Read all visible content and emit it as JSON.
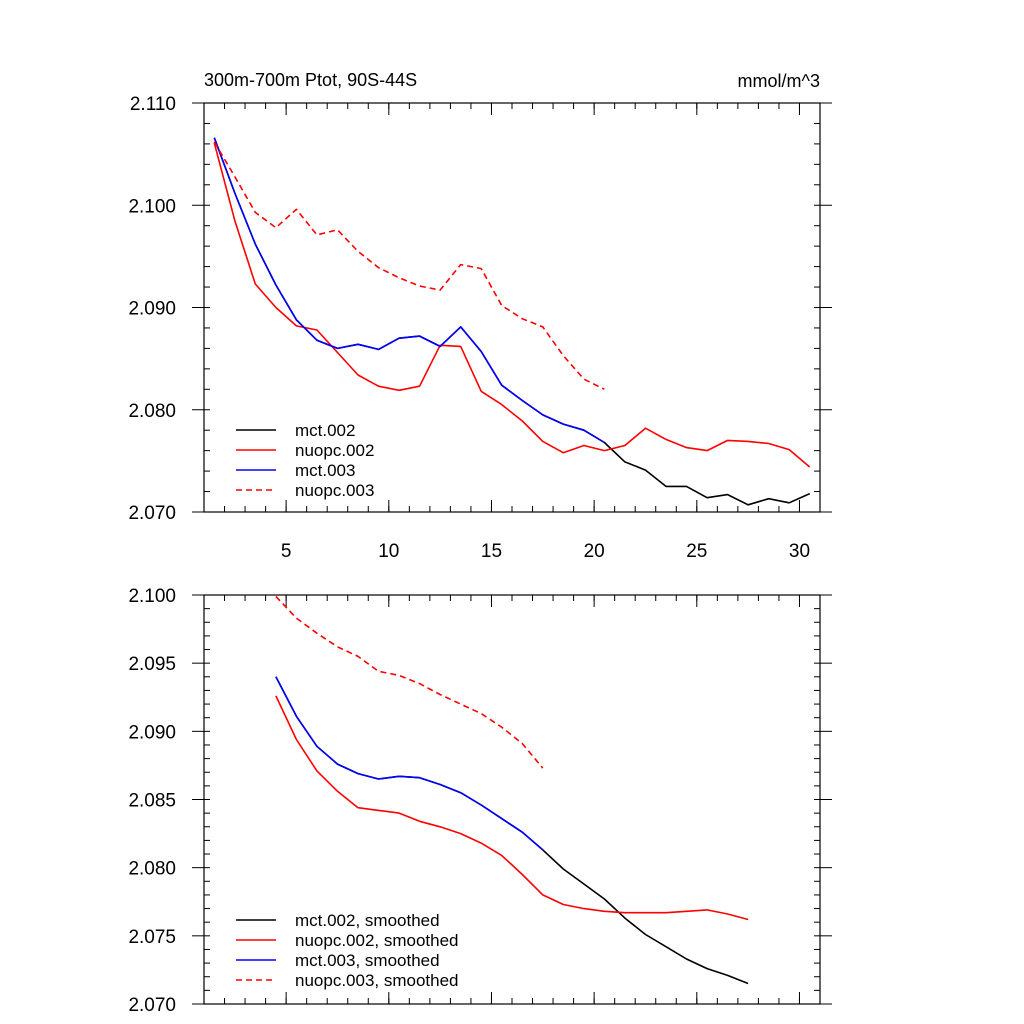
{
  "chart_data": [
    {
      "type": "line",
      "title": "300m-700m Ptot, 90S-44S",
      "units_label": "mmol/m^3",
      "xlim": [
        1,
        31
      ],
      "ylim": [
        2.07,
        2.11
      ],
      "x_ticks": [
        5,
        10,
        15,
        20,
        25,
        30
      ],
      "x_tick_labels": [
        "5",
        "10",
        "15",
        "20",
        "25",
        "30"
      ],
      "x_minor_step": 1,
      "y_ticks": [
        2.07,
        2.08,
        2.09,
        2.1,
        2.11
      ],
      "y_tick_labels": [
        "2.070",
        "2.080",
        "2.090",
        "2.100",
        "2.110"
      ],
      "y_minor_step": 0.002,
      "legend_position": "bottom-left",
      "series": [
        {
          "name": "mct.002",
          "color": "#000000",
          "dash": "solid",
          "x": [
            1.5,
            2.5,
            3.5,
            4.5,
            5.5,
            6.5,
            7.5,
            8.5,
            9.5,
            10.5,
            11.5,
            12.5,
            13.5,
            14.5,
            15.5,
            16.5,
            17.5,
            18.5,
            19.5,
            20.5,
            21.5,
            22.5,
            23.5,
            24.5,
            25.5,
            26.5,
            27.5,
            28.5,
            29.5,
            30.5
          ],
          "values": [
            2.1066,
            2.1012,
            2.0962,
            2.0922,
            2.0888,
            2.0868,
            2.086,
            2.0864,
            2.0859,
            2.087,
            2.0872,
            2.0862,
            2.0881,
            2.0857,
            2.0824,
            2.0809,
            2.0795,
            2.0786,
            2.078,
            2.0768,
            2.0749,
            2.0741,
            2.0725,
            2.0725,
            2.0714,
            2.0717,
            2.0707,
            2.0713,
            2.0709,
            2.0718
          ]
        },
        {
          "name": "nuopc.002",
          "color": "#ff0000",
          "dash": "solid",
          "x": [
            1.5,
            2.5,
            3.5,
            4.5,
            5.5,
            6.5,
            7.5,
            8.5,
            9.5,
            10.5,
            11.5,
            12.5,
            13.5,
            14.5,
            15.5,
            16.5,
            17.5,
            18.5,
            19.5,
            20.5,
            21.5,
            22.5,
            23.5,
            24.5,
            25.5,
            26.5,
            27.5,
            28.5,
            29.5,
            30.5
          ],
          "values": [
            2.1061,
            2.0985,
            2.0923,
            2.09,
            2.0882,
            2.0878,
            2.0856,
            2.0834,
            2.0823,
            2.0819,
            2.0823,
            2.0863,
            2.0862,
            2.0818,
            2.0805,
            2.0789,
            2.0769,
            2.0758,
            2.0765,
            2.076,
            2.0765,
            2.0782,
            2.0771,
            2.0763,
            2.076,
            2.077,
            2.0769,
            2.0767,
            2.0761,
            2.0744
          ]
        },
        {
          "name": "mct.003",
          "color": "#0000ff",
          "dash": "solid",
          "x": [
            1.5,
            2.5,
            3.5,
            4.5,
            5.5,
            6.5,
            7.5,
            8.5,
            9.5,
            10.5,
            11.5,
            12.5,
            13.5,
            14.5,
            15.5,
            16.5,
            17.5,
            18.5,
            19.5,
            20.5
          ],
          "values": [
            2.1066,
            2.1012,
            2.0962,
            2.0922,
            2.0888,
            2.0868,
            2.086,
            2.0864,
            2.0859,
            2.087,
            2.0872,
            2.0862,
            2.0881,
            2.0857,
            2.0824,
            2.0809,
            2.0795,
            2.0786,
            2.078,
            2.0768
          ]
        },
        {
          "name": "nuopc.003",
          "color": "#ff0000",
          "dash": "dashed",
          "x": [
            1.5,
            2.5,
            3.5,
            4.5,
            5.5,
            6.5,
            7.5,
            8.5,
            9.5,
            10.5,
            11.5,
            12.5,
            13.5,
            14.5,
            15.5,
            16.5,
            17.5,
            18.5,
            19.5,
            20.5
          ],
          "values": [
            2.1062,
            2.1028,
            2.0993,
            2.0978,
            2.0996,
            2.0971,
            2.0976,
            2.0955,
            2.0939,
            2.0929,
            2.0921,
            2.0917,
            2.0942,
            2.0938,
            2.0902,
            2.0889,
            2.0881,
            2.0853,
            2.083,
            2.082
          ]
        }
      ]
    },
    {
      "type": "line",
      "title": "",
      "xlim": [
        1,
        31
      ],
      "ylim": [
        2.07,
        2.1
      ],
      "x_ticks": [
        5,
        10,
        15,
        20,
        25,
        30
      ],
      "x_tick_labels": [],
      "x_minor_step": 1,
      "y_ticks": [
        2.07,
        2.075,
        2.08,
        2.085,
        2.09,
        2.095,
        2.1
      ],
      "y_tick_labels": [
        "2.070",
        "2.075",
        "2.080",
        "2.085",
        "2.090",
        "2.095",
        "2.100"
      ],
      "y_minor_step": 0.001,
      "legend_position": "bottom-left",
      "series": [
        {
          "name": "mct.002, smoothed",
          "color": "#000000",
          "dash": "solid",
          "x": [
            4.5,
            5.5,
            6.5,
            7.5,
            8.5,
            9.5,
            10.5,
            11.5,
            12.5,
            13.5,
            14.5,
            15.5,
            16.5,
            17.5,
            18.5,
            19.5,
            20.5,
            21.5,
            22.5,
            23.5,
            24.5,
            25.5,
            26.5,
            27.5
          ],
          "values": [
            2.094,
            2.0911,
            2.0889,
            2.0876,
            2.0869,
            2.0865,
            2.0867,
            2.0866,
            2.0861,
            2.0855,
            2.0846,
            2.0836,
            2.0826,
            2.0813,
            2.0799,
            2.0788,
            2.0777,
            2.0763,
            2.0751,
            2.0742,
            2.0733,
            2.0726,
            2.0721,
            2.0715
          ]
        },
        {
          "name": "nuopc.002, smoothed",
          "color": "#ff0000",
          "dash": "solid",
          "x": [
            4.5,
            5.5,
            6.5,
            7.5,
            8.5,
            9.5,
            10.5,
            11.5,
            12.5,
            13.5,
            14.5,
            15.5,
            16.5,
            17.5,
            18.5,
            19.5,
            20.5,
            21.5,
            22.5,
            23.5,
            24.5,
            25.5,
            26.5,
            27.5
          ],
          "values": [
            2.0926,
            2.0894,
            2.0871,
            2.0856,
            2.0844,
            2.0842,
            2.084,
            2.0834,
            2.083,
            2.0825,
            2.0818,
            2.0809,
            2.0795,
            2.078,
            2.0773,
            2.077,
            2.0768,
            2.0767,
            2.0767,
            2.0767,
            2.0768,
            2.0769,
            2.0766,
            2.0762
          ]
        },
        {
          "name": "mct.003, smoothed",
          "color": "#0000ff",
          "dash": "solid",
          "x": [
            4.5,
            5.5,
            6.5,
            7.5,
            8.5,
            9.5,
            10.5,
            11.5,
            12.5,
            13.5,
            14.5,
            15.5,
            16.5,
            17.5
          ],
          "values": [
            2.094,
            2.0911,
            2.0889,
            2.0876,
            2.0869,
            2.0865,
            2.0867,
            2.0866,
            2.0861,
            2.0855,
            2.0846,
            2.0836,
            2.0826,
            2.0813
          ]
        },
        {
          "name": "nuopc.003, smoothed",
          "color": "#ff0000",
          "dash": "dashed",
          "x": [
            4.5,
            5.5,
            6.5,
            7.5,
            8.5,
            9.5,
            10.5,
            11.5,
            12.5,
            13.5,
            14.5,
            15.5,
            16.5,
            17.5
          ],
          "values": [
            2.0999,
            2.0983,
            2.0972,
            2.0962,
            2.0955,
            2.0944,
            2.0941,
            2.0935,
            2.0927,
            2.092,
            2.0913,
            2.0903,
            2.0891,
            2.0873
          ]
        }
      ]
    }
  ]
}
